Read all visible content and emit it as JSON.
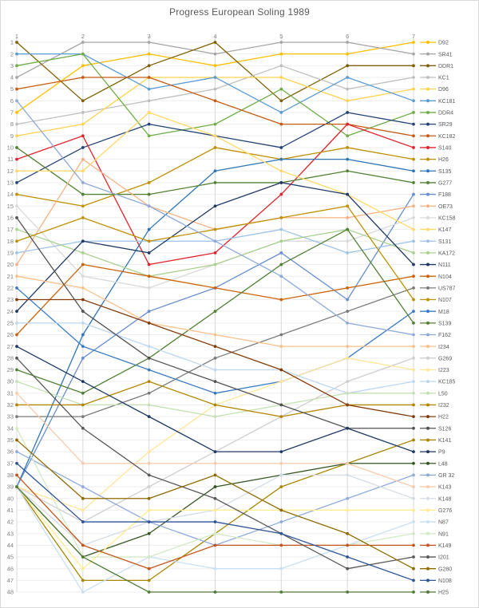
{
  "title": "Progress European Soling 1989",
  "chart_data": {
    "type": "line",
    "subtype": "bump-rank-progress",
    "title": "Progress European Soling 1989",
    "xlabel": "",
    "ylabel": "",
    "x": [
      1,
      2,
      3,
      4,
      5,
      6,
      7
    ],
    "x_top_ticks": [
      "1",
      "2",
      "3",
      "4",
      "5",
      "6",
      "7"
    ],
    "y_left_ticks": [
      "1",
      "2",
      "3",
      "4",
      "5",
      "6",
      "7",
      "8",
      "9",
      "10",
      "11",
      "12",
      "13",
      "14",
      "15",
      "16",
      "17",
      "18",
      "19",
      "20",
      "21",
      "22",
      "23",
      "24",
      "25",
      "26",
      "27",
      "28",
      "29",
      "30",
      "31",
      "32",
      "33",
      "34",
      "35",
      "36",
      "37",
      "38",
      "39",
      "40",
      "41",
      "42",
      "43",
      "44",
      "45",
      "46",
      "47",
      "48"
    ],
    "ylim": [
      1,
      48
    ],
    "y_inverted": true,
    "grid": true,
    "gridline_color_h": "#ededed",
    "gridline_color_v": "#d9d9d9",
    "axis_text_color": "#808080",
    "legend_text_color": "#595959",
    "legend_position": "right",
    "series": [
      {
        "name": "D92",
        "color": "#FFC000",
        "values": [
          7,
          3,
          2,
          3,
          2,
          2,
          1
        ]
      },
      {
        "name": "SR41",
        "color": "#A6A6A6",
        "values": [
          4,
          1,
          1,
          2,
          1,
          1,
          2
        ]
      },
      {
        "name": "DDR1",
        "color": "#7F6000",
        "values": [
          1,
          6,
          3,
          1,
          6,
          3,
          3
        ]
      },
      {
        "name": "KC1",
        "color": "#BFBFBF",
        "values": [
          8,
          7,
          6,
          5,
          3,
          5,
          4
        ]
      },
      {
        "name": "D96",
        "color": "#FFD24C",
        "values": [
          9,
          8,
          4,
          4,
          4,
          6,
          5
        ]
      },
      {
        "name": "KC181",
        "color": "#5B9BD5",
        "values": [
          2,
          2,
          5,
          4,
          7,
          4,
          6
        ]
      },
      {
        "name": "DDR4",
        "color": "#70AD47",
        "values": [
          3,
          2,
          9,
          8,
          5,
          9,
          7
        ]
      },
      {
        "name": "SR29",
        "color": "#264478",
        "values": [
          13,
          10,
          8,
          9,
          10,
          7,
          8
        ]
      },
      {
        "name": "KC182",
        "color": "#C55A11",
        "values": [
          5,
          4,
          4,
          6,
          8,
          8,
          9
        ]
      },
      {
        "name": "S140",
        "color": "#E0242B",
        "values": [
          11,
          9,
          20,
          19,
          14,
          8,
          10
        ]
      },
      {
        "name": "H26",
        "color": "#BF8F00",
        "values": [
          14,
          15,
          13,
          10,
          11,
          10,
          11
        ]
      },
      {
        "name": "S135",
        "color": "#2E75B6",
        "values": [
          39,
          26,
          17,
          12,
          11,
          11,
          12
        ]
      },
      {
        "name": "G277",
        "color": "#548235",
        "values": [
          10,
          14,
          14,
          13,
          13,
          12,
          13
        ]
      },
      {
        "name": "F188",
        "color": "#698ED0",
        "values": [
          39,
          28,
          24,
          22,
          19,
          23,
          14
        ]
      },
      {
        "name": "OE73",
        "color": "#F4B183",
        "values": [
          20,
          11,
          15,
          17,
          16,
          16,
          15
        ]
      },
      {
        "name": "KC158",
        "color": "#D9D9D9",
        "values": [
          15,
          21,
          22,
          20,
          18,
          18,
          16
        ]
      },
      {
        "name": "K147",
        "color": "#FFD966",
        "values": [
          12,
          12,
          7,
          9,
          12,
          14,
          17
        ]
      },
      {
        "name": "S131",
        "color": "#9DC3E6",
        "values": [
          19,
          18,
          18,
          18,
          17,
          19,
          18
        ]
      },
      {
        "name": "KA172",
        "color": "#A9D18E",
        "values": [
          17,
          19,
          21,
          20,
          18,
          17,
          19
        ]
      },
      {
        "name": "N111",
        "color": "#203864",
        "values": [
          24,
          18,
          19,
          15,
          13,
          14,
          20
        ]
      },
      {
        "name": "N104",
        "color": "#CC6308",
        "values": [
          26,
          20,
          21,
          22,
          23,
          22,
          21
        ]
      },
      {
        "name": "US787",
        "color": "#7B7B7B",
        "values": [
          33,
          33,
          31,
          28,
          26,
          24,
          22
        ]
      },
      {
        "name": "N107",
        "color": "#BF9000",
        "values": [
          18,
          16,
          18,
          17,
          16,
          15,
          23
        ]
      },
      {
        "name": "M18",
        "color": "#3B7DC4",
        "values": [
          22,
          27,
          29,
          31,
          30,
          28,
          24
        ]
      },
      {
        "name": "S139",
        "color": "#538135",
        "values": [
          29,
          31,
          28,
          24,
          20,
          17,
          25
        ]
      },
      {
        "name": "F162",
        "color": "#8EAADB",
        "values": [
          6,
          13,
          15,
          18,
          21,
          25,
          26
        ]
      },
      {
        "name": "I234",
        "color": "#F7C08A",
        "values": [
          21,
          22,
          25,
          26,
          27,
          27,
          27
        ]
      },
      {
        "name": "G269",
        "color": "#D0CECE",
        "values": [
          39,
          42,
          39,
          36,
          33,
          30,
          28
        ]
      },
      {
        "name": "I223",
        "color": "#FFE699",
        "values": [
          39,
          41,
          36,
          32,
          30,
          28,
          29
        ]
      },
      {
        "name": "KC185",
        "color": "#BDD7EE",
        "values": [
          25,
          25,
          27,
          29,
          29,
          31,
          30
        ]
      },
      {
        "name": "L50",
        "color": "#C5E0B4",
        "values": [
          30,
          32,
          32,
          33,
          32,
          31,
          31
        ]
      },
      {
        "name": "I232",
        "color": "#B38600",
        "values": [
          32,
          32,
          30,
          32,
          33,
          32,
          32
        ]
      },
      {
        "name": "H22",
        "color": "#843C0C",
        "values": [
          23,
          23,
          25,
          27,
          29,
          32,
          33
        ]
      },
      {
        "name": "S126",
        "color": "#525252",
        "values": [
          16,
          24,
          28,
          30,
          32,
          34,
          34
        ]
      },
      {
        "name": "K141",
        "color": "#A98600",
        "values": [
          39,
          47,
          47,
          43,
          39,
          37,
          35
        ]
      },
      {
        "name": "P9",
        "color": "#1F3864",
        "values": [
          27,
          30,
          33,
          36,
          36,
          34,
          36
        ]
      },
      {
        "name": "L48",
        "color": "#375623",
        "values": [
          39,
          45,
          43,
          39,
          38,
          37,
          37
        ]
      },
      {
        "name": "GR 32",
        "color": "#8FAADC",
        "values": [
          36,
          39,
          42,
          44,
          42,
          40,
          38
        ]
      },
      {
        "name": "K143",
        "color": "#F8CBAD",
        "values": [
          31,
          37,
          37,
          37,
          37,
          37,
          39
        ]
      },
      {
        "name": "K148",
        "color": "#D6DCE4",
        "values": [
          39,
          44,
          42,
          41,
          38,
          38,
          40
        ]
      },
      {
        "name": "G276",
        "color": "#FFEC8C",
        "values": [
          39,
          46,
          41,
          41,
          41,
          41,
          41
        ]
      },
      {
        "name": "N87",
        "color": "#C9DFF2",
        "values": [
          39,
          48,
          45,
          46,
          46,
          44,
          42
        ]
      },
      {
        "name": "N91",
        "color": "#D3EAC5",
        "values": [
          34,
          45,
          45,
          43,
          44,
          44,
          43
        ]
      },
      {
        "name": "K149",
        "color": "#C3551C",
        "values": [
          38,
          44,
          46,
          44,
          44,
          44,
          44
        ]
      },
      {
        "name": "I201",
        "color": "#595959",
        "values": [
          28,
          34,
          38,
          40,
          43,
          46,
          45
        ]
      },
      {
        "name": "G280",
        "color": "#8F6A00",
        "values": [
          35,
          40,
          40,
          38,
          41,
          43,
          46
        ]
      },
      {
        "name": "N108",
        "color": "#2F5597",
        "values": [
          37,
          42,
          42,
          42,
          43,
          45,
          47
        ]
      },
      {
        "name": "H25",
        "color": "#4E7A35",
        "values": [
          39,
          45,
          48,
          48,
          48,
          48,
          48
        ]
      }
    ]
  }
}
